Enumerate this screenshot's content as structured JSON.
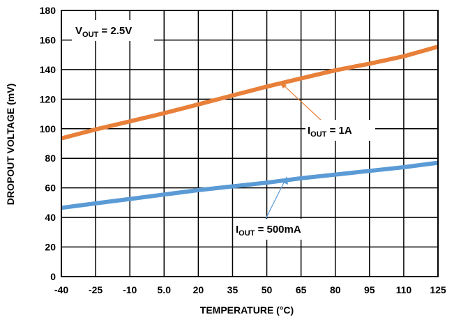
{
  "chart_data": {
    "type": "line",
    "title": "",
    "xlabel": "TEMPERATURE (°C)",
    "ylabel": "DROPOUT VOLTAGE (mV)",
    "xlim": [
      -40,
      125
    ],
    "ylim": [
      0,
      180
    ],
    "x_ticks": [
      "-40",
      "-25",
      "-10",
      "5.0",
      "20",
      "35",
      "50",
      "65",
      "80",
      "95",
      "110",
      "125"
    ],
    "y_ticks": [
      "0",
      "20",
      "40",
      "60",
      "80",
      "100",
      "120",
      "140",
      "160",
      "180"
    ],
    "grid": true,
    "series": [
      {
        "label_main": "I",
        "label_sub": "OUT",
        "label_rest": " = 1A",
        "color": "#E8803A",
        "x": [
          -40,
          -25,
          -10,
          5,
          20,
          35,
          50,
          65,
          80,
          95,
          110,
          125
        ],
        "values": [
          93.5,
          99.5,
          105,
          110.5,
          116.5,
          122.5,
          128.5,
          134,
          139.5,
          144,
          149,
          155.5
        ]
      },
      {
        "label_main": "I",
        "label_sub": "OUT",
        "label_rest": " = 500mA",
        "color": "#5B9BD5",
        "x": [
          -40,
          -25,
          -10,
          5,
          20,
          35,
          50,
          65,
          80,
          95,
          110,
          125
        ],
        "values": [
          46.5,
          49.5,
          52.5,
          55.5,
          58.5,
          61,
          63.5,
          66.5,
          69,
          71.5,
          74,
          77
        ]
      }
    ],
    "condition": {
      "main": "V",
      "sub": "OUT",
      "rest": " = 2.5V"
    }
  }
}
